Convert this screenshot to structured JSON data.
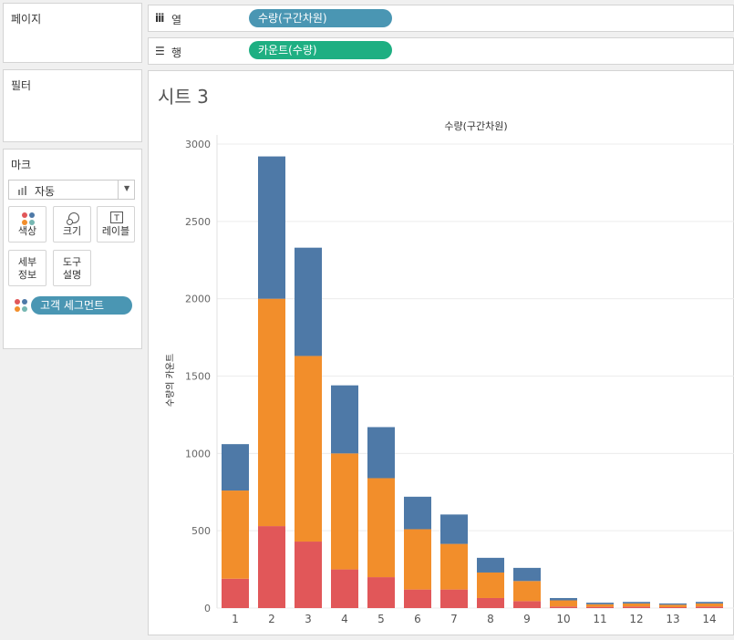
{
  "panels": {
    "pages_title": "페이지",
    "filters_title": "필터",
    "marks_title": "마크"
  },
  "shelves": {
    "columns_label": "열",
    "columns_pill": "수량(구간차원)",
    "rows_label": "행",
    "rows_pill": "카운트(수량)"
  },
  "marks": {
    "type_value": "자동",
    "buttons": {
      "color": "색상",
      "size": "크기",
      "label": "레이블",
      "detail_line1": "세부",
      "detail_line2": "정보",
      "tooltip_line1": "도구",
      "tooltip_line2": "설명"
    },
    "color_pill": "고객 세그먼트"
  },
  "sheet": {
    "title": "시트 3"
  },
  "colors": {
    "columns_pill": "#4a96b3",
    "rows_pill": "#1eaf82",
    "series_bottom": "#e15759",
    "series_middle": "#f28e2b",
    "series_top": "#4e79a7"
  },
  "chart_data": {
    "type": "bar",
    "stacked": true,
    "title": "수량(구간차원)",
    "ylabel": "수량의 카운트",
    "xlabel": "",
    "categories": [
      "1",
      "2",
      "3",
      "4",
      "5",
      "6",
      "7",
      "8",
      "9",
      "10",
      "11",
      "12",
      "13",
      "14"
    ],
    "series": [
      {
        "values": [
          190,
          530,
          430,
          250,
          200,
          120,
          120,
          65,
          45,
          10,
          8,
          10,
          6,
          10
        ]
      },
      {
        "values": [
          570,
          1470,
          1200,
          750,
          640,
          390,
          295,
          165,
          130,
          40,
          17,
          20,
          16,
          20
        ]
      },
      {
        "values": [
          300,
          920,
          700,
          440,
          330,
          210,
          190,
          95,
          85,
          15,
          10,
          10,
          8,
          10
        ]
      }
    ],
    "yticks": [
      0,
      500,
      1000,
      1500,
      2000,
      2500,
      3000
    ],
    "ylim": [
      0,
      3000
    ],
    "grid": true,
    "legend": "none"
  }
}
